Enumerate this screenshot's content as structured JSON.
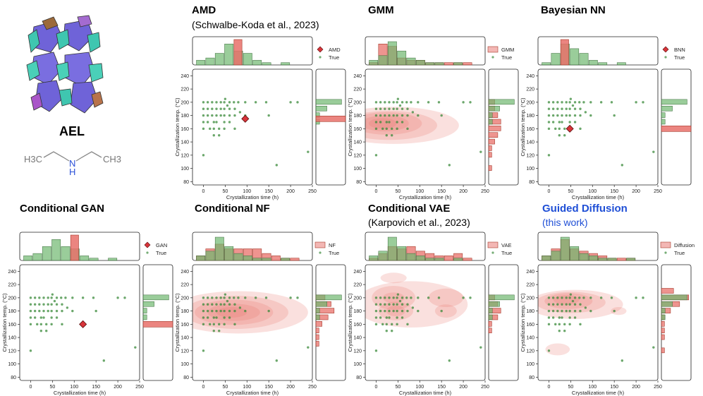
{
  "structure": {
    "framework_label": "AEL",
    "amine_left": "H3C",
    "amine_n": "N",
    "amine_h": "H",
    "amine_right": "CH3"
  },
  "colors": {
    "generated": "#e8706a",
    "generated_dark": "#a63a2b",
    "true": "#3a8a3a",
    "true_hist": "#6fb86f",
    "diamond": "#d8343a",
    "title_blue": "#1f4fd6"
  },
  "axes": {
    "xlabel": "Crystallization time (h)",
    "ylabel": "Crystallization temp. (°C)",
    "xlim": [
      -25,
      250
    ],
    "ylim": [
      75,
      250
    ],
    "xticks": [
      "0",
      "50",
      "100",
      "150",
      "200",
      "250"
    ],
    "yticks": [
      "80",
      "100",
      "120",
      "140",
      "160",
      "180",
      "200",
      "220",
      "240"
    ]
  },
  "panels": [
    {
      "id": "amd",
      "title": "AMD",
      "subtitle": "(Schwalbe-Koda et al., 2023)",
      "legend_generated": "AMD",
      "legend_true": "True",
      "marker": "diamond",
      "point": [
        96,
        175
      ],
      "title_color": "#000000"
    },
    {
      "id": "gmm",
      "title": "GMM",
      "subtitle": "",
      "legend_generated": "GMM",
      "legend_true": "True",
      "marker": "kde",
      "title_color": "#000000"
    },
    {
      "id": "bnn",
      "title": "Bayesian NN",
      "subtitle": "",
      "legend_generated": "BNN",
      "legend_true": "True",
      "marker": "diamond",
      "point": [
        48,
        160
      ],
      "title_color": "#000000"
    },
    {
      "id": "gan",
      "title": "Conditional GAN",
      "subtitle": "",
      "legend_generated": "GAN",
      "legend_true": "True",
      "marker": "diamond",
      "point": [
        120,
        160
      ],
      "title_color": "#000000"
    },
    {
      "id": "nf",
      "title": "Conditional NF",
      "subtitle": "",
      "legend_generated": "NF",
      "legend_true": "True",
      "marker": "kde",
      "title_color": "#000000"
    },
    {
      "id": "vae",
      "title": "Conditional VAE",
      "subtitle": "(Karpovich et al., 2023)",
      "legend_generated": "VAE",
      "legend_true": "True",
      "marker": "kde",
      "title_color": "#000000"
    },
    {
      "id": "diff",
      "title": "Guided Diffusion",
      "subtitle": "(this work)",
      "legend_generated": "Diffusion",
      "legend_true": "True",
      "marker": "kde",
      "title_color": "#1f4fd6"
    }
  ],
  "chart_data": {
    "type": "scatter",
    "xlabel": "Crystallization time (h)",
    "ylabel": "Crystallization temp. (°C)",
    "xlim": [
      -25,
      250
    ],
    "ylim": [
      75,
      250
    ],
    "series": [
      {
        "name": "True",
        "points": [
          [
            0,
            200
          ],
          [
            0,
            190
          ],
          [
            0,
            180
          ],
          [
            0,
            170
          ],
          [
            0,
            160
          ],
          [
            10,
            200
          ],
          [
            10,
            190
          ],
          [
            10,
            180
          ],
          [
            10,
            170
          ],
          [
            15,
            160
          ],
          [
            20,
            200
          ],
          [
            20,
            190
          ],
          [
            20,
            180
          ],
          [
            24,
            170
          ],
          [
            24,
            160
          ],
          [
            24,
            150
          ],
          [
            30,
            200
          ],
          [
            30,
            190
          ],
          [
            30,
            180
          ],
          [
            30,
            170
          ],
          [
            36,
            160
          ],
          [
            36,
            150
          ],
          [
            40,
            200
          ],
          [
            40,
            190
          ],
          [
            40,
            180
          ],
          [
            48,
            200
          ],
          [
            48,
            190
          ],
          [
            48,
            180
          ],
          [
            48,
            170
          ],
          [
            48,
            160
          ],
          [
            50,
            205
          ],
          [
            55,
            195
          ],
          [
            60,
            200
          ],
          [
            60,
            190
          ],
          [
            60,
            180
          ],
          [
            60,
            170
          ],
          [
            70,
            200
          ],
          [
            72,
            190
          ],
          [
            72,
            180
          ],
          [
            72,
            160
          ],
          [
            80,
            200
          ],
          [
            84,
            185
          ],
          [
            96,
            200
          ],
          [
            96,
            180
          ],
          [
            120,
            200
          ],
          [
            144,
            200
          ],
          [
            150,
            180
          ],
          [
            168,
            105
          ],
          [
            200,
            200
          ],
          [
            216,
            200
          ],
          [
            240,
            125
          ],
          [
            0,
            120
          ]
        ]
      }
    ]
  }
}
